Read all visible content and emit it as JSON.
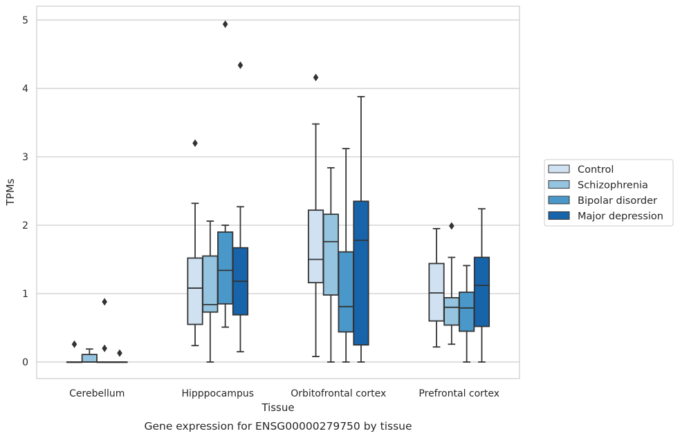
{
  "chart_data": {
    "type": "box",
    "caption": "Gene expression for ENSG00000279750 by tissue",
    "xlabel": "Tissue",
    "ylabel": "TPMs",
    "ylim": [
      -0.24,
      5.2
    ],
    "yticks": [
      0,
      1,
      2,
      3,
      4,
      5
    ],
    "grid": true,
    "legend_position": "right",
    "categories": [
      "Cerebellum",
      "Hipppocampus",
      "Orbitofrontal cortex",
      "Prefrontal cortex"
    ],
    "series": [
      {
        "name": "Control",
        "color": "#d0e1f2",
        "boxes": [
          {
            "whislo": 0,
            "q1": 0,
            "med": 0,
            "q3": 0,
            "whishi": 0,
            "fliers": [
              0.26
            ]
          },
          {
            "whislo": 0.24,
            "q1": 0.55,
            "med": 1.08,
            "q3": 1.52,
            "whishi": 2.32,
            "fliers": [
              3.2
            ]
          },
          {
            "whislo": 0.08,
            "q1": 1.16,
            "med": 1.5,
            "q3": 2.22,
            "whishi": 3.48,
            "fliers": [
              4.16
            ]
          },
          {
            "whislo": 0.22,
            "q1": 0.6,
            "med": 1.01,
            "q3": 1.44,
            "whishi": 1.95,
            "fliers": []
          }
        ]
      },
      {
        "name": "Schizophrenia",
        "color": "#94c4df",
        "boxes": [
          {
            "whislo": 0,
            "q1": 0,
            "med": 0,
            "q3": 0.11,
            "whishi": 0.19,
            "fliers": []
          },
          {
            "whislo": 0,
            "q1": 0.73,
            "med": 0.84,
            "q3": 1.55,
            "whishi": 2.06,
            "fliers": []
          },
          {
            "whislo": 0,
            "q1": 0.98,
            "med": 1.76,
            "q3": 2.16,
            "whishi": 2.84,
            "fliers": []
          },
          {
            "whislo": 0.26,
            "q1": 0.54,
            "med": 0.8,
            "q3": 0.94,
            "whishi": 1.53,
            "fliers": [
              1.99
            ]
          }
        ]
      },
      {
        "name": "Bipolar disorder",
        "color": "#4a98c9",
        "boxes": [
          {
            "whislo": 0,
            "q1": 0,
            "med": 0,
            "q3": 0,
            "whishi": 0,
            "fliers": [
              0.88,
              0.2
            ]
          },
          {
            "whislo": 0.51,
            "q1": 0.85,
            "med": 1.34,
            "q3": 1.9,
            "whishi": 2.0,
            "fliers": [
              4.94
            ]
          },
          {
            "whislo": 0,
            "q1": 0.44,
            "med": 0.81,
            "q3": 1.61,
            "whishi": 3.12,
            "fliers": []
          },
          {
            "whislo": 0,
            "q1": 0.45,
            "med": 0.79,
            "q3": 1.02,
            "whishi": 1.41,
            "fliers": []
          }
        ]
      },
      {
        "name": "Major depression",
        "color": "#1764ab",
        "boxes": [
          {
            "whislo": 0,
            "q1": 0,
            "med": 0,
            "q3": 0,
            "whishi": 0,
            "fliers": [
              0.13
            ]
          },
          {
            "whislo": 0.15,
            "q1": 0.69,
            "med": 1.18,
            "q3": 1.67,
            "whishi": 2.27,
            "fliers": [
              4.34
            ]
          },
          {
            "whislo": 0,
            "q1": 0.25,
            "med": 1.78,
            "q3": 2.35,
            "whishi": 3.88,
            "fliers": []
          },
          {
            "whislo": 0,
            "q1": 0.52,
            "med": 1.12,
            "q3": 1.53,
            "whishi": 2.24,
            "fliers": []
          }
        ]
      }
    ]
  }
}
